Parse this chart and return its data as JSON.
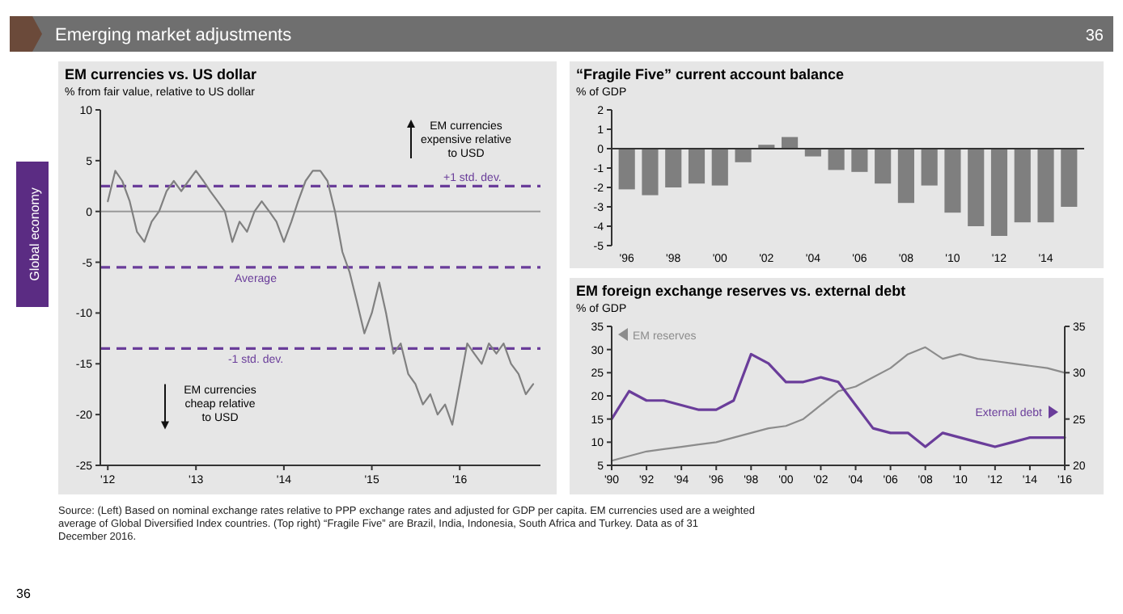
{
  "chart_data": [
    {
      "type": "line",
      "title": "EM currencies vs. US dollar",
      "subtitle": "% from fair value, relative to US dollar",
      "x": [
        "2012-01",
        "2012-02",
        "2012-03",
        "2012-04",
        "2012-05",
        "2012-06",
        "2012-07",
        "2012-08",
        "2012-09",
        "2012-10",
        "2012-11",
        "2012-12",
        "2013-01",
        "2013-02",
        "2013-03",
        "2013-04",
        "2013-05",
        "2013-06",
        "2013-07",
        "2013-08",
        "2013-09",
        "2013-10",
        "2013-11",
        "2013-12",
        "2014-01",
        "2014-02",
        "2014-03",
        "2014-04",
        "2014-05",
        "2014-06",
        "2014-07",
        "2014-08",
        "2014-09",
        "2014-10",
        "2014-11",
        "2014-12",
        "2015-01",
        "2015-02",
        "2015-03",
        "2015-04",
        "2015-05",
        "2015-06",
        "2015-07",
        "2015-08",
        "2015-09",
        "2015-10",
        "2015-11",
        "2015-12",
        "2016-01",
        "2016-02",
        "2016-03",
        "2016-04",
        "2016-05",
        "2016-06",
        "2016-07",
        "2016-08",
        "2016-09",
        "2016-10",
        "2016-11"
      ],
      "series": [
        {
          "color": "#808080",
          "values": [
            1,
            4,
            3,
            1,
            -2,
            -3,
            -1,
            0,
            2,
            3,
            2,
            3,
            4,
            3,
            2,
            1,
            0,
            -3,
            -1,
            -2,
            0,
            1,
            0,
            -1,
            -3,
            -1,
            1,
            3,
            4,
            4,
            3,
            0,
            -4,
            -6,
            -9,
            -12,
            -10,
            -7,
            -10,
            -14,
            -13,
            -16,
            -17,
            -19,
            -18,
            -20,
            -19,
            -21,
            -17,
            -13,
            -14,
            -15,
            -13,
            -14,
            -13,
            -15,
            -16,
            -18,
            -17
          ]
        }
      ],
      "xlim": [
        "2011-12",
        "2016-12"
      ],
      "xticks": [
        {
          "value": "2012-01",
          "label": "'12"
        },
        {
          "value": "2013-01",
          "label": "'13"
        },
        {
          "value": "2014-01",
          "label": "'14"
        },
        {
          "value": "2015-01",
          "label": "'15"
        },
        {
          "value": "2016-01",
          "label": "'16"
        }
      ],
      "ylim": [
        -25,
        10
      ],
      "yticks": [
        -25,
        -20,
        -15,
        -10,
        -5,
        0,
        5,
        10
      ],
      "ref_lines": [
        {
          "axis": "y",
          "value": 0,
          "color": "#999999",
          "line_style": "solid"
        },
        {
          "axis": "y",
          "value": 2.5,
          "label": "+1 std. dev.",
          "color": "#6a3d9a",
          "line_style": "dashed"
        },
        {
          "axis": "y",
          "value": -5.5,
          "label": "Average",
          "color": "#6a3d9a",
          "line_style": "dashed"
        },
        {
          "axis": "y",
          "value": -13.5,
          "label": "-1 std. dev.",
          "color": "#6a3d9a",
          "line_style": "dashed"
        }
      ],
      "annotations": [
        "EM currencies expensive relative to USD",
        "EM currencies cheap relative to USD"
      ]
    },
    {
      "type": "bar",
      "title": "“Fragile Five” current account balance",
      "subtitle": "% of GDP",
      "categories": [
        "'96",
        null,
        "'98",
        null,
        "'00",
        null,
        "'02",
        null,
        "'04",
        null,
        "'06",
        null,
        "'08",
        null,
        "'10",
        null,
        "'12",
        null,
        "'14",
        null
      ],
      "values": [
        -2.1,
        -2.4,
        -2.0,
        -1.8,
        -1.9,
        -0.7,
        0.2,
        0.6,
        -0.4,
        -1.1,
        -1.2,
        -1.8,
        -2.8,
        -1.9,
        -3.3,
        -4.0,
        -4.5,
        -3.8,
        -3.8,
        -3.0
      ],
      "color": "#7f7f7f",
      "ylim": [
        -5,
        2
      ],
      "yticks": [
        -5,
        -4,
        -3,
        -2,
        -1,
        0,
        1,
        2
      ]
    },
    {
      "type": "line",
      "title": "EM foreign exchange reserves vs. external debt",
      "subtitle": "% of GDP",
      "x": [
        1990,
        1991,
        1992,
        1993,
        1994,
        1995,
        1996,
        1997,
        1998,
        1999,
        2000,
        2001,
        2002,
        2003,
        2004,
        2005,
        2006,
        2007,
        2008,
        2009,
        2010,
        2011,
        2012,
        2013,
        2014,
        2015,
        2016
      ],
      "series": [
        {
          "name": "EM reserves",
          "color": "#8c8c8c",
          "values": [
            6,
            7,
            8,
            8.5,
            9,
            9.5,
            10,
            11,
            12,
            13,
            13.5,
            15,
            18,
            21,
            22,
            24,
            26,
            29,
            30.5,
            28,
            29,
            28,
            27.5,
            27,
            26.5,
            26,
            25
          ]
        },
        {
          "name": "External debt",
          "color": "#6a3d9a",
          "axis": "y2",
          "values": [
            25,
            28,
            27,
            27,
            26.5,
            26,
            26,
            27,
            32,
            31,
            29,
            29,
            29.5,
            29,
            26.5,
            24,
            23.5,
            23.5,
            22,
            23.5,
            23,
            22.5,
            22,
            22.5,
            23,
            23,
            23
          ]
        }
      ],
      "xlim": [
        1990,
        2016
      ],
      "xticks": [
        {
          "value": 1990,
          "label": "'90"
        },
        {
          "value": 1992,
          "label": "'92"
        },
        {
          "value": 1994,
          "label": "'94"
        },
        {
          "value": 1996,
          "label": "'96"
        },
        {
          "value": 1998,
          "label": "'98"
        },
        {
          "value": 2000,
          "label": "'00"
        },
        {
          "value": 2002,
          "label": "'02"
        },
        {
          "value": 2004,
          "label": "'04"
        },
        {
          "value": 2006,
          "label": "'06"
        },
        {
          "value": 2008,
          "label": "'08"
        },
        {
          "value": 2010,
          "label": "'10"
        },
        {
          "value": 2012,
          "label": "'12"
        },
        {
          "value": 2014,
          "label": "'14"
        },
        {
          "value": 2016,
          "label": "'16"
        }
      ],
      "ylim": [
        5,
        35
      ],
      "yticks": [
        5,
        10,
        15,
        20,
        25,
        30,
        35
      ],
      "y2lim": [
        20,
        35
      ],
      "y2ticks": [
        20,
        25,
        30,
        35
      ]
    },
    {
      "type": "other",
      "title": "Emerging market adjustments",
      "annotations": [
        "Global economy",
        "36",
        "Source: (Left) Based on nominal exchange rates relative to PPP exchange rates and adjusted for GDP per capita. EM currencies used are a weighted average of Global Diversified Index countries. (Top right) “Fragile Five” are Brazil, India, Indonesia, South Africa and Turkey. Data as of 31 December 2016.",
        "36"
      ]
    }
  ]
}
